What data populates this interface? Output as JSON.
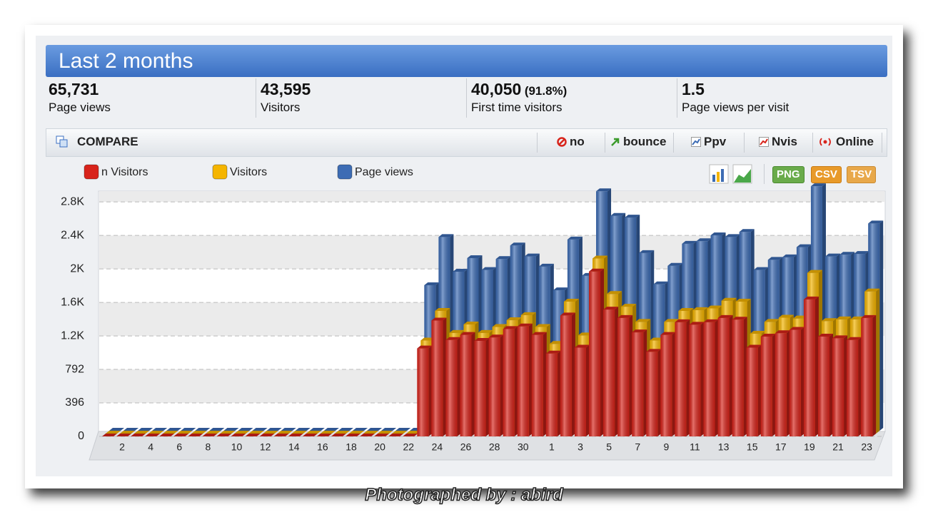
{
  "header": {
    "title": "Last 2 months"
  },
  "stats": [
    {
      "value": "65,731",
      "label": "Page views"
    },
    {
      "value": "43,595",
      "label": "Visitors"
    },
    {
      "value": "40,050",
      "extra": "(91.8%)",
      "label": "First time visitors"
    },
    {
      "value": "1.5",
      "label": "Page views per visit"
    }
  ],
  "toolbar": {
    "title": "COMPARE",
    "options": [
      "no",
      "bounce",
      "Ppv",
      "Nvis",
      "Online"
    ]
  },
  "export": [
    "PNG",
    "CSV",
    "TSV"
  ],
  "chart_data": {
    "type": "bar",
    "categories": [
      null,
      "2",
      null,
      "4",
      null,
      "6",
      null,
      "8",
      null,
      "10",
      null,
      "12",
      null,
      "14",
      null,
      "16",
      null,
      "18",
      null,
      "20",
      null,
      "22",
      null,
      "24",
      null,
      "26",
      null,
      "28",
      null,
      "30",
      null,
      "1",
      null,
      "3",
      null,
      "5",
      null,
      "7",
      null,
      "9",
      null,
      "11",
      null,
      "13",
      null,
      "15",
      null,
      "17",
      null,
      "19",
      null,
      "21",
      null,
      "23"
    ],
    "series": [
      {
        "name": "n Visitors",
        "color": "#d8241b",
        "values": [
          0,
          0,
          0,
          0,
          0,
          0,
          0,
          0,
          0,
          0,
          0,
          0,
          0,
          0,
          0,
          0,
          0,
          0,
          0,
          0,
          0,
          0,
          1040,
          1370,
          1140,
          1200,
          1130,
          1170,
          1270,
          1300,
          1200,
          980,
          1430,
          1050,
          1950,
          1500,
          1400,
          1230,
          1000,
          1200,
          1350,
          1320,
          1350,
          1400,
          1380,
          1050,
          1180,
          1220,
          1260,
          1620,
          1180,
          1160,
          1140,
          1400
        ]
      },
      {
        "name": "Visitors",
        "color": "#f5b500",
        "values": [
          0,
          0,
          0,
          0,
          0,
          0,
          0,
          0,
          0,
          0,
          0,
          0,
          0,
          0,
          0,
          0,
          0,
          0,
          0,
          0,
          0,
          0,
          1100,
          1450,
          1190,
          1290,
          1190,
          1260,
          1340,
          1400,
          1260,
          1060,
          1560,
          1160,
          2070,
          1650,
          1500,
          1320,
          1100,
          1320,
          1450,
          1460,
          1480,
          1570,
          1560,
          1180,
          1320,
          1370,
          1360,
          1900,
          1330,
          1350,
          1350,
          1680
        ]
      },
      {
        "name": "Page views",
        "color": "#3d6cb4",
        "values": [
          0,
          0,
          0,
          0,
          0,
          0,
          0,
          0,
          0,
          0,
          0,
          0,
          0,
          0,
          0,
          0,
          0,
          0,
          0,
          0,
          0,
          0,
          1720,
          2290,
          1880,
          2040,
          1900,
          2030,
          2190,
          2060,
          1940,
          1660,
          2260,
          1830,
          2830,
          2540,
          2520,
          2100,
          1730,
          1950,
          2210,
          2240,
          2310,
          2290,
          2350,
          1900,
          2020,
          2050,
          2170,
          2890,
          2060,
          2080,
          2090,
          2450
        ]
      }
    ],
    "ylim": [
      0,
      2900
    ],
    "yticks": [
      0,
      396,
      792,
      {
        "value": 1188,
        "label": "1.2K"
      },
      {
        "value": 1584,
        "label": "1.6K"
      },
      {
        "value": 1980,
        "label": "2K"
      },
      {
        "value": 2376,
        "label": "2.4K"
      },
      {
        "value": 2772,
        "label": "2.8K"
      }
    ],
    "grid": true
  },
  "watermark": "Photographed by : abird"
}
